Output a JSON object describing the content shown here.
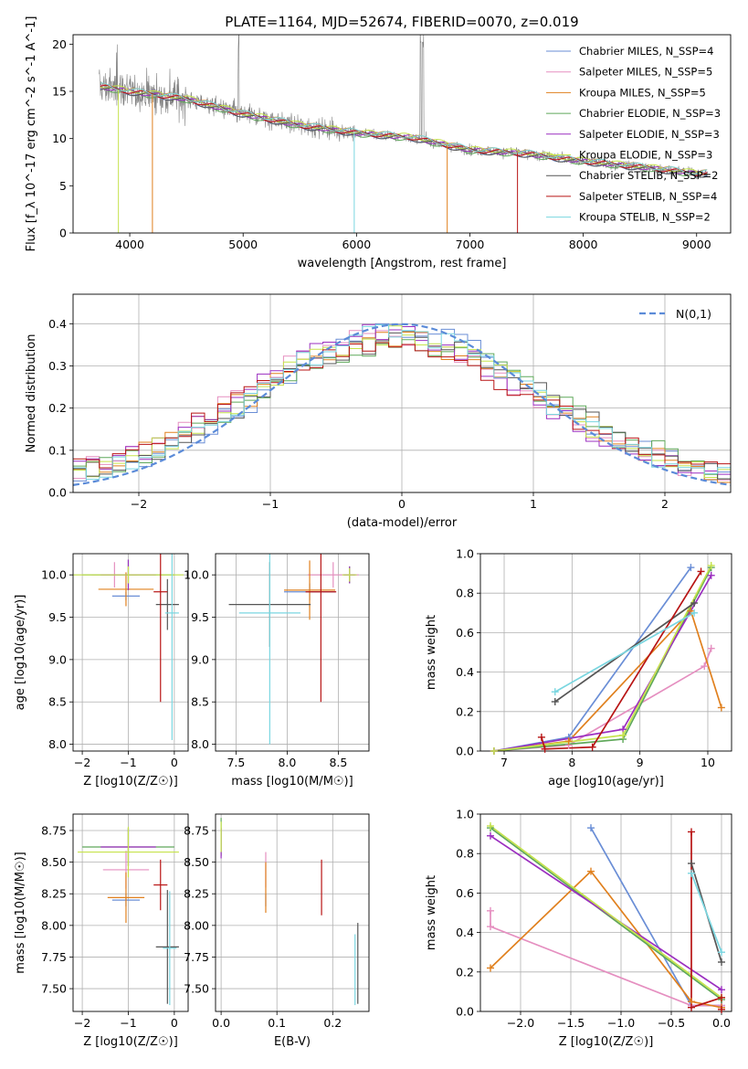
{
  "figure_title": "PLATE=1164, MJD=52674, FIBERID=0070, z=0.019",
  "colors": {
    "Chabrier MILES": "#6a8ed6",
    "Salpeter MILES": "#e58fc0",
    "Kroupa MILES": "#e0801e",
    "Chabrier ELODIE": "#5fa85a",
    "Salpeter ELODIE": "#9b2fc0",
    "Kroupa ELODIE": "#c6e34c",
    "Chabrier STELIB": "#555555",
    "Salpeter STELIB": "#b81414",
    "Kroupa STELIB": "#7ad6e0",
    "data": "#808080",
    "normal": "#5b8bd8"
  },
  "chart_data": [
    {
      "type": "line",
      "title": "PLATE=1164, MJD=52674, FIBERID=0070, z=0.019",
      "xlabel": "wavelength [Angstrom, rest frame]",
      "ylabel": "Flux [f_λ 10^-17 erg cm^-2 s^-1 A^-1]",
      "xlim": [
        3500,
        9300
      ],
      "ylim": [
        0,
        21
      ],
      "xticks": [
        4000,
        5000,
        6000,
        7000,
        8000,
        9000
      ],
      "yticks": [
        0,
        5,
        10,
        15,
        20
      ],
      "legend_position": "top-right",
      "legend": [
        "Chabrier MILES, N_SSP=4",
        "Salpeter MILES, N_SSP=5",
        "Kroupa MILES, N_SSP=5",
        "Chabrier ELODIE, N_SSP=3",
        "Salpeter ELODIE, N_SSP=3",
        "Kroupa ELODIE, N_SSP=3",
        "Chabrier STELIB, N_SSP=2",
        "Salpeter STELIB, N_SSP=4",
        "Kroupa STELIB, N_SSP=2"
      ],
      "continuum_x": [
        3750,
        4000,
        4500,
        5000,
        5500,
        6000,
        6500,
        7000,
        7500,
        8000,
        8500,
        9000
      ],
      "continuum_y": [
        15.5,
        15.0,
        14.2,
        12.6,
        11.4,
        10.6,
        10.1,
        8.8,
        8.4,
        7.6,
        7.0,
        6.3
      ]
    },
    {
      "type": "line",
      "xlabel": "(data-model)/error",
      "ylabel": "Normed distribution",
      "xlim": [
        -2.5,
        2.5
      ],
      "ylim": [
        0,
        0.47
      ],
      "xticks": [
        -2,
        -1,
        0,
        1,
        2
      ],
      "yticks": [
        0.0,
        0.1,
        0.2,
        0.3,
        0.4
      ],
      "legend": [
        "N(0,1)"
      ],
      "legend_position": "top-right"
    },
    {
      "type": "scatter",
      "xlabel": "Z [log10(Z/Z☉)]",
      "ylabel": "age [log10(age/yr)]",
      "xlim": [
        -2.2,
        0.3
      ],
      "ylim": [
        7.92,
        10.25
      ],
      "xticks": [
        -2,
        -1,
        0
      ],
      "yticks": [
        8.0,
        8.5,
        9.0,
        9.5,
        10.0
      ],
      "points": [
        {
          "model": "Chabrier MILES",
          "x": -1.05,
          "xerr": 0.3,
          "y": 9.75,
          "yerr": 0.05
        },
        {
          "model": "Salpeter MILES",
          "x": -1.3,
          "xerr": 0.5,
          "y": 10.0,
          "yerr": 0.15
        },
        {
          "model": "Kroupa MILES",
          "x": -1.05,
          "xerr": 0.6,
          "y": 9.83,
          "yerr": 0.2
        },
        {
          "model": "Chabrier ELODIE",
          "x": -1.0,
          "xerr": 1.0,
          "y": 10.0,
          "yerr": 0.18
        },
        {
          "model": "Salpeter ELODIE",
          "x": -1.0,
          "xerr": 0.6,
          "y": 10.0,
          "yerr": 0.18
        },
        {
          "model": "Kroupa ELODIE",
          "x": -1.0,
          "xerr": 1.2,
          "y": 10.0,
          "yerr": 0.1
        },
        {
          "model": "Chabrier STELIB",
          "x": -0.15,
          "xerr": 0.25,
          "y": 9.65,
          "yerr": 0.3
        },
        {
          "model": "Salpeter STELIB",
          "x": -0.3,
          "xerr": 0.15,
          "y": 9.8,
          "yerr": 1.3
        },
        {
          "model": "Kroupa STELIB",
          "x": -0.05,
          "xerr": 0.15,
          "y": 9.55,
          "yerr": 1.5
        }
      ]
    },
    {
      "type": "scatter",
      "xlabel": "mass [log10(M/M☉)]",
      "ylabel": "",
      "xlim": [
        7.3,
        8.8
      ],
      "ylim": [
        7.92,
        10.25
      ],
      "xticks": [
        7.5,
        8.0,
        8.5
      ],
      "yticks": [
        8.0,
        8.5,
        9.0,
        9.5,
        10.0
      ],
      "points": [
        {
          "model": "Chabrier MILES",
          "x": 8.22,
          "xerr": 0.25,
          "y": 9.8,
          "yerr": 0.1
        },
        {
          "model": "Salpeter MILES",
          "x": 8.45,
          "xerr": 0.25,
          "y": 10.0,
          "yerr": 0.15
        },
        {
          "model": "Kroupa MILES",
          "x": 8.22,
          "xerr": 0.25,
          "y": 9.82,
          "yerr": 0.35
        },
        {
          "model": "Chabrier ELODIE",
          "x": 8.61,
          "xerr": 0.05,
          "y": 10.0,
          "yerr": 0.1
        },
        {
          "model": "Salpeter ELODIE",
          "x": 8.61,
          "xerr": 0.06,
          "y": 10.0,
          "yerr": 0.1
        },
        {
          "model": "Kroupa ELODIE",
          "x": 8.61,
          "xerr": 0.07,
          "y": 10.0,
          "yerr": 0.08
        },
        {
          "model": "Chabrier STELIB",
          "x": 7.83,
          "xerr": 0.4,
          "y": 9.65,
          "yerr": 0.5
        },
        {
          "model": "Salpeter STELIB",
          "x": 8.33,
          "xerr": 0.15,
          "y": 9.8,
          "yerr": 1.3
        },
        {
          "model": "Kroupa STELIB",
          "x": 7.83,
          "xerr": 0.3,
          "y": 9.55,
          "yerr": 1.55
        }
      ]
    },
    {
      "type": "line",
      "xlabel": "age [log10(age/yr)]",
      "ylabel": "mass weight",
      "xlim": [
        6.65,
        10.35
      ],
      "ylim": [
        0,
        1
      ],
      "xticks": [
        7,
        8,
        9,
        10
      ],
      "yticks": [
        0.0,
        0.2,
        0.4,
        0.6,
        0.8,
        1.0
      ],
      "series": [
        {
          "model": "Chabrier MILES",
          "x": [
            6.85,
            7.95,
            9.75
          ],
          "y": [
            0.0,
            0.07,
            0.93
          ]
        },
        {
          "model": "Salpeter MILES",
          "x": [
            6.85,
            7.95,
            9.95,
            10.05
          ],
          "y": [
            0.0,
            0.03,
            0.43,
            0.52
          ]
        },
        {
          "model": "Kroupa MILES",
          "x": [
            6.85,
            7.95,
            9.75,
            10.2
          ],
          "y": [
            0.0,
            0.05,
            0.71,
            0.22
          ]
        },
        {
          "model": "Chabrier ELODIE",
          "x": [
            6.85,
            8.75,
            10.05
          ],
          "y": [
            0.0,
            0.06,
            0.93
          ]
        },
        {
          "model": "Salpeter ELODIE",
          "x": [
            6.85,
            8.75,
            10.05
          ],
          "y": [
            0.0,
            0.11,
            0.89
          ]
        },
        {
          "model": "Kroupa ELODIE",
          "x": [
            6.85,
            8.75,
            10.05
          ],
          "y": [
            0.0,
            0.08,
            0.94
          ]
        },
        {
          "model": "Chabrier STELIB",
          "x": [
            7.75,
            9.8
          ],
          "y": [
            0.25,
            0.75
          ]
        },
        {
          "model": "Salpeter STELIB",
          "x": [
            7.55,
            7.6,
            8.3,
            9.9
          ],
          "y": [
            0.07,
            0.01,
            0.02,
            0.91
          ]
        },
        {
          "model": "Kroupa STELIB",
          "x": [
            7.75,
            9.8
          ],
          "y": [
            0.3,
            0.7
          ]
        }
      ]
    },
    {
      "type": "scatter",
      "xlabel": "Z [log10(Z/Z☉)]",
      "ylabel": "mass [log10(M/M☉)]",
      "xlim": [
        -2.2,
        0.3
      ],
      "ylim": [
        7.32,
        8.88
      ],
      "xticks": [
        -2,
        -1,
        0
      ],
      "yticks": [
        7.5,
        7.75,
        8.0,
        8.25,
        8.5,
        8.75
      ],
      "points": [
        {
          "model": "Chabrier MILES",
          "x": -1.05,
          "xerr": 0.3,
          "y": 8.2,
          "yerr": 0.05
        },
        {
          "model": "Salpeter MILES",
          "x": -1.05,
          "xerr": 0.5,
          "y": 8.44,
          "yerr": 0.15
        },
        {
          "model": "Kroupa MILES",
          "x": -1.05,
          "xerr": 0.4,
          "y": 8.22,
          "yerr": 0.2
        },
        {
          "model": "Chabrier ELODIE",
          "x": -1.0,
          "xerr": 1.0,
          "y": 8.62,
          "yerr": 0.15
        },
        {
          "model": "Salpeter ELODIE",
          "x": -1.0,
          "xerr": 0.6,
          "y": 8.62,
          "yerr": 0.15
        },
        {
          "model": "Kroupa ELODIE",
          "x": -1.0,
          "xerr": 1.1,
          "y": 8.58,
          "yerr": 0.2
        },
        {
          "model": "Chabrier STELIB",
          "x": -0.15,
          "xerr": 0.25,
          "y": 7.83,
          "yerr": 0.45
        },
        {
          "model": "Salpeter STELIB",
          "x": -0.3,
          "xerr": 0.15,
          "y": 8.32,
          "yerr": 0.2
        },
        {
          "model": "Kroupa STELIB",
          "x": -0.1,
          "xerr": 0.15,
          "y": 7.82,
          "yerr": 0.45
        }
      ]
    },
    {
      "type": "scatter",
      "xlabel": "E(B-V)",
      "ylabel": "",
      "xlim": [
        -0.01,
        0.265
      ],
      "ylim": [
        7.32,
        8.88
      ],
      "xticks": [
        0.0,
        0.1,
        0.2
      ],
      "yticks": [
        7.5,
        7.75,
        8.0,
        8.25,
        8.5,
        8.75
      ],
      "points": [
        {
          "model": "Chabrier MILES",
          "x": 0.08,
          "y": 8.2,
          "yerr": 0.05
        },
        {
          "model": "Salpeter MILES",
          "x": 0.08,
          "y": 8.44,
          "yerr": 0.14
        },
        {
          "model": "Kroupa MILES",
          "x": 0.08,
          "y": 8.3,
          "yerr": 0.2
        },
        {
          "model": "Chabrier ELODIE",
          "x": 0.0,
          "y": 8.7,
          "yerr": 0.15
        },
        {
          "model": "Salpeter ELODIE",
          "x": 0.0,
          "y": 8.65,
          "yerr": 0.12
        },
        {
          "model": "Kroupa ELODIE",
          "x": 0.0,
          "y": 8.7,
          "yerr": 0.12
        },
        {
          "model": "Chabrier STELIB",
          "x": 0.245,
          "y": 7.7,
          "yerr": 0.32
        },
        {
          "model": "Salpeter STELIB",
          "x": 0.18,
          "y": 8.3,
          "yerr": 0.22
        },
        {
          "model": "Kroupa STELIB",
          "x": 0.24,
          "y": 7.65,
          "yerr": 0.28
        }
      ]
    },
    {
      "type": "line",
      "xlabel": "Z [log10(Z/Z☉)]",
      "ylabel": "mass weight",
      "xlim": [
        -2.4,
        0.1
      ],
      "ylim": [
        0,
        1
      ],
      "xticks": [
        -2.0,
        -1.5,
        -1.0,
        -0.5,
        0.0
      ],
      "yticks": [
        0.0,
        0.2,
        0.4,
        0.6,
        0.8,
        1.0
      ],
      "series": [
        {
          "model": "Chabrier MILES",
          "x": [
            -1.3,
            -0.3,
            0.0
          ],
          "y": [
            0.93,
            0.03,
            0.03
          ]
        },
        {
          "model": "Salpeter MILES",
          "x": [
            -2.3,
            -2.3,
            -0.3,
            0.0
          ],
          "y": [
            0.51,
            0.43,
            0.03,
            0.03
          ]
        },
        {
          "model": "Kroupa MILES",
          "x": [
            -2.3,
            -1.3,
            -0.3,
            0.0
          ],
          "y": [
            0.22,
            0.71,
            0.05,
            0.02
          ]
        },
        {
          "model": "Chabrier ELODIE",
          "x": [
            -2.3,
            0.0
          ],
          "y": [
            0.93,
            0.06
          ]
        },
        {
          "model": "Salpeter ELODIE",
          "x": [
            -2.3,
            0.0
          ],
          "y": [
            0.89,
            0.11
          ]
        },
        {
          "model": "Kroupa ELODIE",
          "x": [
            -2.3,
            0.0
          ],
          "y": [
            0.94,
            0.07
          ]
        },
        {
          "model": "Chabrier STELIB",
          "x": [
            -0.3,
            0.0
          ],
          "y": [
            0.75,
            0.25
          ]
        },
        {
          "model": "Salpeter STELIB",
          "x": [
            -0.3,
            -0.3,
            0.0,
            0.0
          ],
          "y": [
            0.91,
            0.02,
            0.07,
            0.01
          ]
        },
        {
          "model": "Kroupa STELIB",
          "x": [
            -0.3,
            0.0
          ],
          "y": [
            0.7,
            0.3
          ]
        }
      ]
    }
  ]
}
